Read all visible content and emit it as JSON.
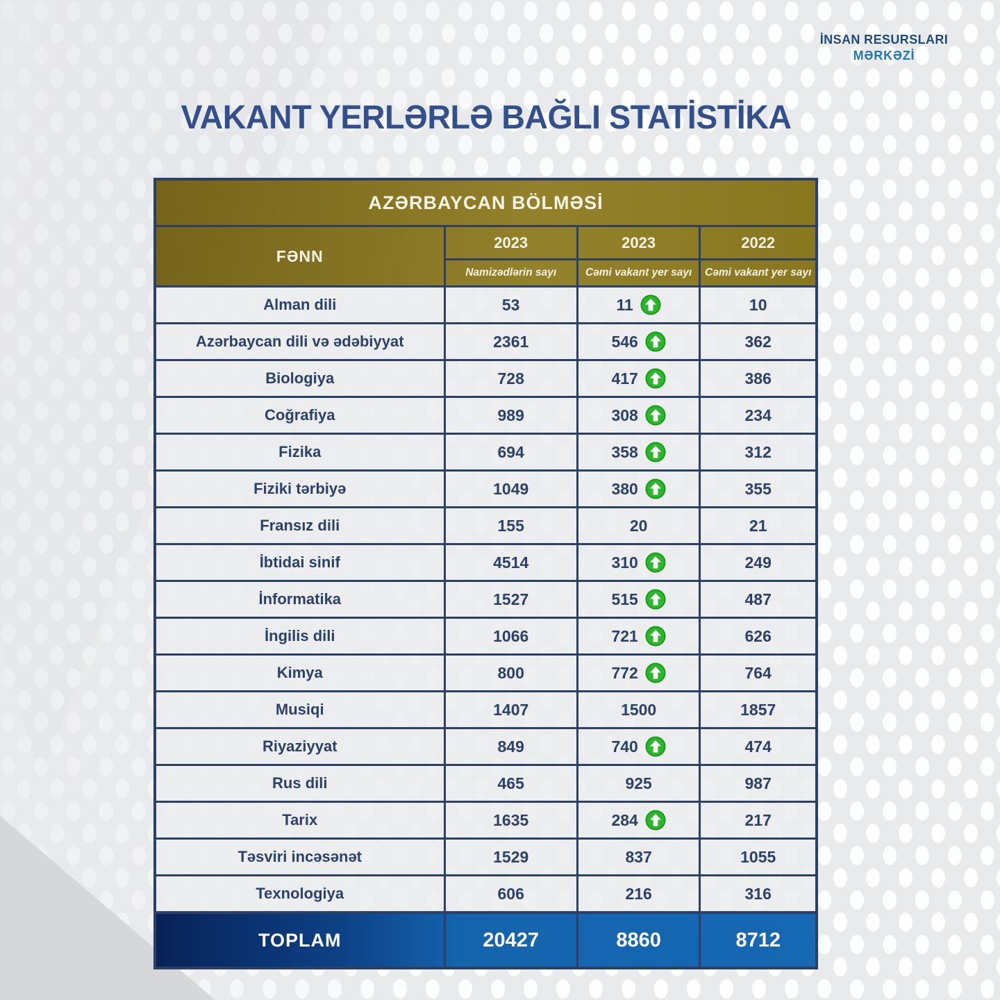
{
  "brand": {
    "line1": "İNSAN RESURSLARI",
    "line2": "MƏRKƏZİ"
  },
  "title": "VAKANT YERLƏRLƏ BAĞLI STATİSTİKA",
  "table": {
    "section_header": "AZƏRBAYCAN BÖLMƏSİ",
    "subject_header": "FƏNN",
    "columns": [
      {
        "year": "2023",
        "label": "Namizədlərin sayı"
      },
      {
        "year": "2023",
        "label": "Cəmi vakant yer sayı"
      },
      {
        "year": "2022",
        "label": "Cəmi vakant yer sayı"
      }
    ],
    "total": {
      "label": "TOPLAM",
      "values": [
        "20427",
        "8860",
        "8712"
      ]
    }
  },
  "chart_data": {
    "type": "table",
    "title": "VAKANT YERLƏRLƏ BAĞLI STATİSTİKA",
    "section": "AZƏRBAYCAN BÖLMƏSİ",
    "columns": [
      "FƏNN",
      "2023 Namizədlərin sayı",
      "2023 Cəmi vakant yer sayı",
      "2022 Cəmi vakant yer sayı"
    ],
    "rows": [
      {
        "subject": "Alman dili",
        "candidates": "53",
        "vacant_2023": "11",
        "up": true,
        "vacant_2022": "10"
      },
      {
        "subject": "Azərbaycan dili və ədəbiyyat",
        "candidates": "2361",
        "vacant_2023": "546",
        "up": true,
        "vacant_2022": "362"
      },
      {
        "subject": "Biologiya",
        "candidates": "728",
        "vacant_2023": "417",
        "up": true,
        "vacant_2022": "386"
      },
      {
        "subject": "Coğrafiya",
        "candidates": "989",
        "vacant_2023": "308",
        "up": true,
        "vacant_2022": "234"
      },
      {
        "subject": "Fizika",
        "candidates": "694",
        "vacant_2023": "358",
        "up": true,
        "vacant_2022": "312"
      },
      {
        "subject": "Fiziki tərbiyə",
        "candidates": "1049",
        "vacant_2023": "380",
        "up": true,
        "vacant_2022": "355"
      },
      {
        "subject": "Fransız dili",
        "candidates": "155",
        "vacant_2023": "20",
        "up": false,
        "vacant_2022": "21"
      },
      {
        "subject": "İbtidai sinif",
        "candidates": "4514",
        "vacant_2023": "310",
        "up": true,
        "vacant_2022": "249"
      },
      {
        "subject": "İnformatika",
        "candidates": "1527",
        "vacant_2023": "515",
        "up": true,
        "vacant_2022": "487"
      },
      {
        "subject": "İngilis dili",
        "candidates": "1066",
        "vacant_2023": "721",
        "up": true,
        "vacant_2022": "626"
      },
      {
        "subject": "Kimya",
        "candidates": "800",
        "vacant_2023": "772",
        "up": true,
        "vacant_2022": "764"
      },
      {
        "subject": "Musiqi",
        "candidates": "1407",
        "vacant_2023": "1500",
        "up": false,
        "vacant_2022": "1857"
      },
      {
        "subject": "Riyaziyyat",
        "candidates": "849",
        "vacant_2023": "740",
        "up": true,
        "vacant_2022": "474"
      },
      {
        "subject": "Rus dili",
        "candidates": "465",
        "vacant_2023": "925",
        "up": false,
        "vacant_2022": "987"
      },
      {
        "subject": "Tarix",
        "candidates": "1635",
        "vacant_2023": "284",
        "up": true,
        "vacant_2022": "217"
      },
      {
        "subject": "Təsviri incəsənət",
        "candidates": "1529",
        "vacant_2023": "837",
        "up": false,
        "vacant_2022": "1055"
      },
      {
        "subject": "Texnologiya",
        "candidates": "606",
        "vacant_2023": "216",
        "up": false,
        "vacant_2022": "316"
      }
    ],
    "total": [
      "TOPLAM",
      20427,
      8860,
      8712
    ]
  },
  "icons": {
    "increase": "up-arrow-circle-icon"
  },
  "colors": {
    "title_text": "#33508c",
    "logo_line1": "#1c4a7e",
    "logo_line2": "#2277b0",
    "table_border": "#2b4064",
    "header_gold": "#8a7722",
    "cell_text": "#2c4168",
    "row_background": "#ecedf0",
    "total_gradient_start": "#082257",
    "total_gradient_end": "#1668b4",
    "increase_green": "#2eb52e",
    "page_background": "#e9eaec"
  }
}
